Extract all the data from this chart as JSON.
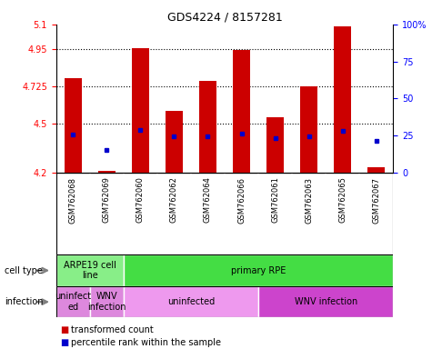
{
  "title": "GDS4224 / 8157281",
  "samples": [
    "GSM762068",
    "GSM762069",
    "GSM762060",
    "GSM762062",
    "GSM762064",
    "GSM762066",
    "GSM762061",
    "GSM762063",
    "GSM762065",
    "GSM762067"
  ],
  "red_values": [
    4.775,
    4.21,
    4.955,
    4.575,
    4.755,
    4.945,
    4.535,
    4.725,
    5.09,
    4.235
  ],
  "blue_values": [
    4.43,
    4.34,
    4.46,
    4.42,
    4.42,
    4.44,
    4.41,
    4.42,
    4.455,
    4.395
  ],
  "ylim_left": [
    4.2,
    5.1
  ],
  "ylim_right": [
    0,
    100
  ],
  "yticks_left": [
    4.2,
    4.5,
    4.725,
    4.95,
    5.1
  ],
  "yticks_right": [
    0,
    25,
    50,
    75,
    100
  ],
  "ytick_labels_left": [
    "4.2",
    "4.5",
    "4.725",
    "4.95",
    "5.1"
  ],
  "ytick_labels_right": [
    "0",
    "25",
    "50",
    "75",
    "100%"
  ],
  "bar_bottom": 4.2,
  "bar_color": "#cc0000",
  "blue_marker_color": "#0000cc",
  "sample_box_color": "#cccccc",
  "cell_type_groups": [
    {
      "label": "ARPE19 cell\nline",
      "start": 0,
      "end": 2,
      "color": "#88ee88"
    },
    {
      "label": "primary RPE",
      "start": 2,
      "end": 10,
      "color": "#44dd44"
    }
  ],
  "infection_groups": [
    {
      "label": "uninfect\ned",
      "start": 0,
      "end": 1,
      "color": "#dd88dd"
    },
    {
      "label": "WNV\ninfection",
      "start": 1,
      "end": 2,
      "color": "#dd88dd"
    },
    {
      "label": "uninfected",
      "start": 2,
      "end": 6,
      "color": "#ee88ee"
    },
    {
      "label": "WNV infection",
      "start": 6,
      "end": 10,
      "color": "#cc44cc"
    }
  ],
  "dotted_lines": [
    4.5,
    4.725,
    4.95
  ],
  "bar_width": 0.5,
  "n_samples": 10
}
